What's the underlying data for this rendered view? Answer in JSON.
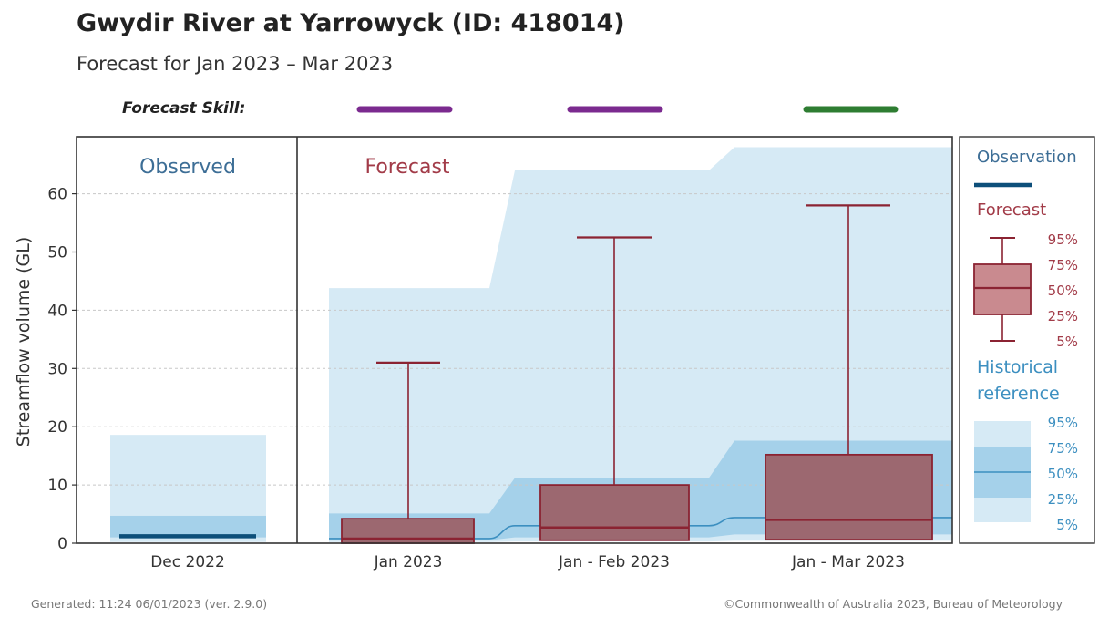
{
  "chart_data": {
    "type": "box",
    "title": "Gwydir River at Yarrowyck (ID: 418014)",
    "subtitle": "Forecast for Jan 2023 – Mar 2023",
    "ylabel": "Streamflow volume (GL)",
    "ylim": [
      0,
      70
    ],
    "yticks": [
      0,
      10,
      20,
      30,
      40,
      50,
      60
    ],
    "grid": true,
    "skill_label": "Forecast Skill:",
    "skill": [
      {
        "period": "Jan 2023",
        "color": "#7b2a8f"
      },
      {
        "period": "Jan - Feb 2023",
        "color": "#7b2a8f"
      },
      {
        "period": "Jan - Mar 2023",
        "color": "#2e7d32"
      }
    ],
    "panel_labels": {
      "observed": "Observed",
      "forecast": "Forecast"
    },
    "observed": {
      "category": "Dec 2022",
      "value": 1.2,
      "historical": {
        "p5": 0.2,
        "p25": 1.0,
        "p75": 4.7,
        "p95": 18.6
      }
    },
    "forecast": [
      {
        "category": "Jan 2023",
        "p5": 0,
        "p25": 0,
        "p50": 0.8,
        "p75": 4.2,
        "p95": 31.0
      },
      {
        "category": "Jan - Feb 2023",
        "p5": 0,
        "p25": 0.5,
        "p50": 2.7,
        "p75": 10.0,
        "p95": 52.5
      },
      {
        "category": "Jan - Mar 2023",
        "p5": 0,
        "p25": 0.6,
        "p50": 4.0,
        "p75": 15.2,
        "p95": 58.0
      }
    ],
    "historical_reference": [
      {
        "period": "Jan 2023",
        "p5": 0.2,
        "p25": 0.5,
        "p50": 0.8,
        "p75": 5.1,
        "p95": 43.8
      },
      {
        "period": "Jan - Feb 2023",
        "p5": 0.3,
        "p25": 1.0,
        "p50": 3.0,
        "p75": 11.2,
        "p95": 64.0
      },
      {
        "period": "Jan - Mar 2023",
        "p5": 0.4,
        "p25": 1.5,
        "p50": 4.4,
        "p75": 17.6,
        "p95": 68.0
      }
    ],
    "colors": {
      "observation": "#0d4f7a",
      "forecast_box": "#9c6870",
      "forecast_line": "#8b2332",
      "forecast_text": "#a23b48",
      "hist_light": "#d6eaf5",
      "hist_mid": "#a5d1ea",
      "hist_line": "#3c8fc0",
      "hist_text": "#3c8fc0",
      "observed_text": "#3d6e96"
    },
    "legend": {
      "observation": "Observation",
      "forecast": "Forecast",
      "forecast_percentiles": [
        "95%",
        "75%",
        "50%",
        "25%",
        "5%"
      ],
      "historical_line1": "Historical",
      "historical_line2": "reference",
      "historical_percentiles": [
        "95%",
        "75%",
        "50%",
        "25%",
        "5%"
      ]
    }
  },
  "footer": {
    "generated": "Generated: 11:24 06/01/2023 (ver. 2.9.0)",
    "copyright": "©Commonwealth of Australia 2023, Bureau of Meteorology"
  }
}
